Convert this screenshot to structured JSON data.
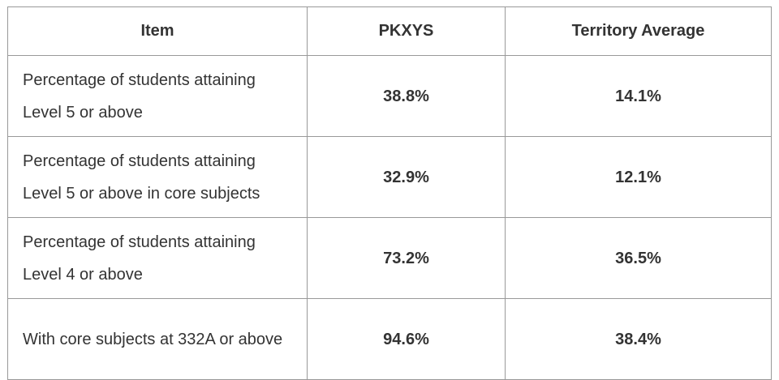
{
  "table": {
    "header": [
      "Item",
      "PKXYS",
      "Territory Average"
    ],
    "rows": [
      [
        "Percentage of students attaining Level 5 or above",
        "38.8%",
        "14.1%"
      ],
      [
        "Percentage of students attaining Level 5 or above in core subjects",
        "32.9%",
        "12.1%"
      ],
      [
        "Percentage of students attaining Level 4 or above",
        "73.2%",
        "36.5%"
      ],
      [
        "With core subjects at 332A or above",
        "94.6%",
        "38.4%"
      ]
    ]
  }
}
